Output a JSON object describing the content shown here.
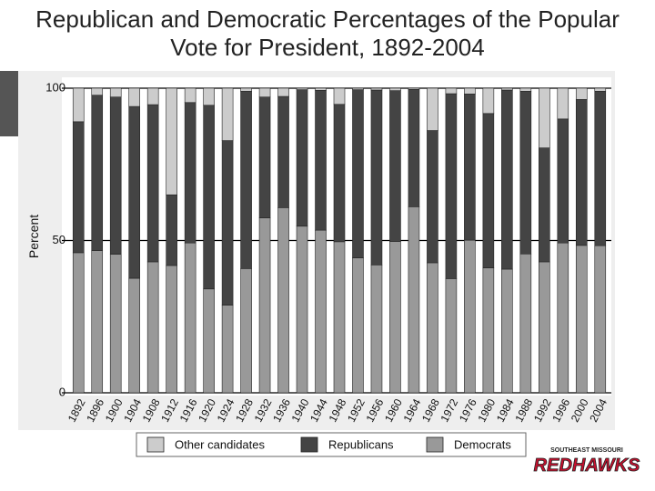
{
  "chart_data": {
    "type": "stacked-bar",
    "title": "Republican and Democratic Percentages of the Popular Vote for President, 1892-2004",
    "y_label": "Percent",
    "categories": [
      "1892",
      "1896",
      "1900",
      "1904",
      "1908",
      "1912",
      "1916",
      "1920",
      "1924",
      "1928",
      "1932",
      "1936",
      "1940",
      "1944",
      "1948",
      "1952",
      "1956",
      "1960",
      "1964",
      "1968",
      "1972",
      "1976",
      "1980",
      "1984",
      "1988",
      "1992",
      "1996",
      "2000",
      "2004"
    ],
    "series": [
      {
        "name": "Other candidates",
        "color": "#cccccc",
        "values": [
          11,
          2.3,
          2.9,
          6,
          5.4,
          35,
          4.7,
          5.6,
          17.2,
          1,
          2.9,
          2.7,
          0.5,
          0.7,
          5.3,
          0.5,
          0.6,
          0.8,
          0.4,
          13.9,
          1.8,
          1.9,
          8.3,
          0.6,
          1,
          19.6,
          10.1,
          3.7,
          1
        ]
      },
      {
        "name": "Republicans",
        "color": "#444444",
        "values": [
          43,
          51,
          51.6,
          56.4,
          51.6,
          23.2,
          46.1,
          60.3,
          54,
          58.2,
          39.7,
          36.5,
          44.8,
          45.9,
          45.1,
          55.2,
          57.4,
          49.5,
          38.5,
          43.4,
          60.7,
          48,
          50.7,
          58.8,
          53.4,
          37.4,
          40.7,
          47.9,
          50.7
        ]
      },
      {
        "name": "Democrats",
        "color": "#999999",
        "values": [
          46,
          46.7,
          45.5,
          37.6,
          43,
          41.8,
          49.2,
          34.1,
          28.8,
          40.8,
          57.4,
          60.8,
          54.7,
          53.4,
          49.6,
          44.3,
          42,
          49.7,
          61.1,
          42.7,
          37.5,
          50.1,
          41,
          40.6,
          45.6,
          43,
          49.2,
          48.4,
          48.3
        ]
      }
    ],
    "ylim": [
      0,
      100
    ],
    "yticks": [
      0,
      50,
      100
    ],
    "grid": true
  },
  "logo": {
    "top": "SOUTHEAST MISSOURI",
    "name": "REDHAWKS"
  }
}
